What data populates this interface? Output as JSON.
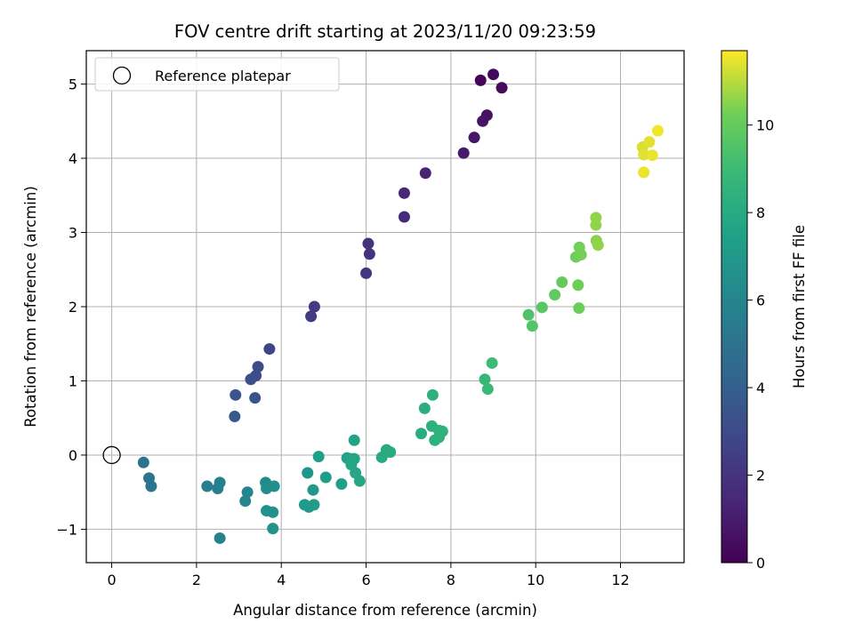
{
  "chart_data": {
    "type": "scatter",
    "title": "FOV centre drift starting at 2023/11/20 09:23:59",
    "xlabel": "Angular distance from reference (arcmin)",
    "ylabel": "Rotation from reference (arcmin)",
    "xlim": [
      -0.6,
      13.5
    ],
    "ylim": [
      -1.45,
      5.45
    ],
    "x_ticks": [
      0,
      2,
      4,
      6,
      8,
      10,
      12
    ],
    "y_ticks": [
      -1,
      0,
      1,
      2,
      3,
      4,
      5
    ],
    "grid": true,
    "legend": {
      "position": "top-left",
      "entries": [
        "Reference platepar"
      ]
    },
    "reference_point": {
      "x": 0,
      "y": 0
    },
    "colorbar": {
      "label": "Hours from first FF file",
      "colormap": "viridis",
      "range": [
        0,
        11.7
      ],
      "ticks": [
        0,
        2,
        4,
        6,
        8,
        10
      ]
    },
    "points": [
      {
        "x": 8.7,
        "y": 5.05,
        "c": 0.2
      },
      {
        "x": 9.0,
        "y": 5.13,
        "c": 0.3
      },
      {
        "x": 9.2,
        "y": 4.95,
        "c": 0.4
      },
      {
        "x": 8.85,
        "y": 4.58,
        "c": 0.6
      },
      {
        "x": 8.75,
        "y": 4.5,
        "c": 0.7
      },
      {
        "x": 8.55,
        "y": 4.28,
        "c": 0.8
      },
      {
        "x": 8.3,
        "y": 4.07,
        "c": 0.9
      },
      {
        "x": 7.4,
        "y": 3.8,
        "c": 1.3
      },
      {
        "x": 6.9,
        "y": 3.53,
        "c": 1.5
      },
      {
        "x": 6.9,
        "y": 3.21,
        "c": 1.6
      },
      {
        "x": 6.05,
        "y": 2.85,
        "c": 1.9
      },
      {
        "x": 6.08,
        "y": 2.71,
        "c": 2.0
      },
      {
        "x": 6.0,
        "y": 2.45,
        "c": 2.1
      },
      {
        "x": 4.78,
        "y": 2.0,
        "c": 2.3
      },
      {
        "x": 4.7,
        "y": 1.87,
        "c": 2.4
      },
      {
        "x": 3.72,
        "y": 1.43,
        "c": 2.8
      },
      {
        "x": 3.45,
        "y": 1.19,
        "c": 3.0
      },
      {
        "x": 3.4,
        "y": 1.07,
        "c": 3.1
      },
      {
        "x": 3.28,
        "y": 1.02,
        "c": 3.2
      },
      {
        "x": 2.92,
        "y": 0.81,
        "c": 3.5
      },
      {
        "x": 3.38,
        "y": 0.77,
        "c": 3.4
      },
      {
        "x": 2.9,
        "y": 0.52,
        "c": 3.7
      },
      {
        "x": 0.75,
        "y": -0.1,
        "c": 5.0
      },
      {
        "x": 0.88,
        "y": -0.31,
        "c": 5.1
      },
      {
        "x": 0.93,
        "y": -0.42,
        "c": 5.2
      },
      {
        "x": 2.25,
        "y": -0.42,
        "c": 5.6
      },
      {
        "x": 2.5,
        "y": -0.45,
        "c": 5.7
      },
      {
        "x": 2.55,
        "y": -0.37,
        "c": 5.8
      },
      {
        "x": 2.55,
        "y": -1.12,
        "c": 5.9
      },
      {
        "x": 3.2,
        "y": -0.5,
        "c": 6.0
      },
      {
        "x": 3.15,
        "y": -0.62,
        "c": 6.1
      },
      {
        "x": 3.63,
        "y": -0.37,
        "c": 6.3
      },
      {
        "x": 3.65,
        "y": -0.45,
        "c": 6.4
      },
      {
        "x": 3.83,
        "y": -0.42,
        "c": 6.5
      },
      {
        "x": 3.65,
        "y": -0.75,
        "c": 6.6
      },
      {
        "x": 3.8,
        "y": -0.77,
        "c": 6.6
      },
      {
        "x": 3.8,
        "y": -0.99,
        "c": 6.7
      },
      {
        "x": 4.62,
        "y": -0.24,
        "c": 6.9
      },
      {
        "x": 4.75,
        "y": -0.47,
        "c": 7.0
      },
      {
        "x": 4.55,
        "y": -0.67,
        "c": 7.1
      },
      {
        "x": 4.65,
        "y": -0.7,
        "c": 7.1
      },
      {
        "x": 4.77,
        "y": -0.67,
        "c": 7.2
      },
      {
        "x": 4.88,
        "y": -0.02,
        "c": 7.3
      },
      {
        "x": 5.05,
        "y": -0.3,
        "c": 7.3
      },
      {
        "x": 5.42,
        "y": -0.39,
        "c": 7.4
      },
      {
        "x": 5.55,
        "y": -0.04,
        "c": 7.5
      },
      {
        "x": 5.63,
        "y": -0.05,
        "c": 7.6
      },
      {
        "x": 5.72,
        "y": 0.2,
        "c": 7.6
      },
      {
        "x": 5.72,
        "y": -0.05,
        "c": 7.7
      },
      {
        "x": 5.65,
        "y": -0.13,
        "c": 7.7
      },
      {
        "x": 5.75,
        "y": -0.24,
        "c": 7.8
      },
      {
        "x": 5.85,
        "y": -0.35,
        "c": 7.8
      },
      {
        "x": 6.37,
        "y": -0.03,
        "c": 7.9
      },
      {
        "x": 6.48,
        "y": 0.07,
        "c": 8.0
      },
      {
        "x": 6.57,
        "y": 0.04,
        "c": 8.0
      },
      {
        "x": 7.3,
        "y": 0.29,
        "c": 8.1
      },
      {
        "x": 7.38,
        "y": 0.63,
        "c": 8.2
      },
      {
        "x": 7.57,
        "y": 0.81,
        "c": 8.3
      },
      {
        "x": 7.55,
        "y": 0.39,
        "c": 8.3
      },
      {
        "x": 7.62,
        "y": 0.2,
        "c": 8.3
      },
      {
        "x": 7.72,
        "y": 0.24,
        "c": 8.4
      },
      {
        "x": 7.72,
        "y": 0.33,
        "c": 8.4
      },
      {
        "x": 7.8,
        "y": 0.32,
        "c": 8.5
      },
      {
        "x": 8.8,
        "y": 1.02,
        "c": 8.8
      },
      {
        "x": 8.87,
        "y": 0.89,
        "c": 8.9
      },
      {
        "x": 8.97,
        "y": 1.24,
        "c": 9.0
      },
      {
        "x": 9.83,
        "y": 1.89,
        "c": 9.5
      },
      {
        "x": 9.92,
        "y": 1.74,
        "c": 9.6
      },
      {
        "x": 10.15,
        "y": 1.99,
        "c": 9.7
      },
      {
        "x": 10.45,
        "y": 2.16,
        "c": 9.9
      },
      {
        "x": 10.62,
        "y": 2.33,
        "c": 10.0
      },
      {
        "x": 10.95,
        "y": 2.67,
        "c": 10.2
      },
      {
        "x": 11.03,
        "y": 2.8,
        "c": 10.3
      },
      {
        "x": 11.07,
        "y": 2.7,
        "c": 10.3
      },
      {
        "x": 11.0,
        "y": 2.29,
        "c": 10.2
      },
      {
        "x": 11.02,
        "y": 1.98,
        "c": 10.1
      },
      {
        "x": 11.42,
        "y": 3.2,
        "c": 10.6
      },
      {
        "x": 11.42,
        "y": 3.1,
        "c": 10.6
      },
      {
        "x": 11.43,
        "y": 2.89,
        "c": 10.5
      },
      {
        "x": 11.47,
        "y": 2.83,
        "c": 10.6
      },
      {
        "x": 12.52,
        "y": 4.15,
        "c": 11.3
      },
      {
        "x": 12.68,
        "y": 4.22,
        "c": 11.4
      },
      {
        "x": 12.55,
        "y": 4.05,
        "c": 11.4
      },
      {
        "x": 12.75,
        "y": 4.04,
        "c": 11.5
      },
      {
        "x": 12.88,
        "y": 4.37,
        "c": 11.6
      },
      {
        "x": 12.55,
        "y": 3.81,
        "c": 11.5
      }
    ]
  }
}
